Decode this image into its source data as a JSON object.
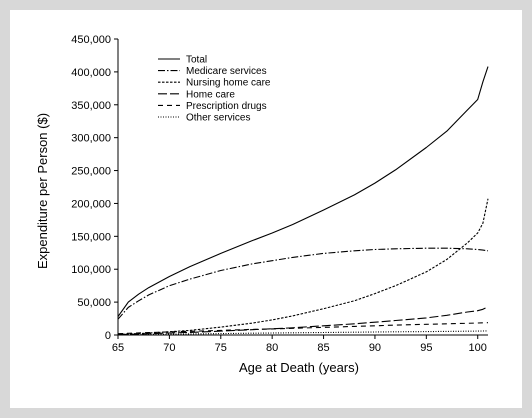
{
  "chart_data": {
    "type": "line",
    "title": "",
    "xlabel": "Age at Death (years)",
    "ylabel": "Expenditure per Person  ($)",
    "xlim": [
      65,
      101
    ],
    "ylim": [
      0,
      450000
    ],
    "x_ticks": [
      65,
      70,
      75,
      80,
      85,
      90,
      95,
      100
    ],
    "y_ticks": [
      0,
      50000,
      100000,
      150000,
      200000,
      250000,
      300000,
      350000,
      400000,
      450000
    ],
    "x_tick_labels": [
      "65",
      "70",
      "75",
      "80",
      "85",
      "90",
      "95",
      "100"
    ],
    "y_tick_labels": [
      "0",
      "50,000",
      "100,000",
      "150,000",
      "200,000",
      "250,000",
      "300,000",
      "350,000",
      "400,000",
      "450,000"
    ],
    "grid": false,
    "legend_position": "top-left",
    "x": [
      65,
      66,
      67,
      68,
      70,
      72,
      75,
      78,
      80,
      82,
      85,
      88,
      90,
      92,
      95,
      97,
      99,
      100,
      100.5,
      101
    ],
    "series": [
      {
        "name": "Total",
        "style": "solid",
        "values": [
          28000,
          50000,
          62000,
          72000,
          89000,
          104000,
          124000,
          143000,
          155000,
          168000,
          190000,
          213000,
          231000,
          251000,
          285000,
          310000,
          342000,
          358000,
          385000,
          408000
        ]
      },
      {
        "name": "Medicare services",
        "style": "dash-dot",
        "values": [
          24000,
          42000,
          52000,
          61000,
          75000,
          85000,
          98000,
          108000,
          113000,
          118000,
          124000,
          128000,
          130000,
          131000,
          132000,
          132000,
          131000,
          130000,
          129000,
          128000
        ]
      },
      {
        "name": "Nursing home care",
        "style": "short-dash",
        "values": [
          1000,
          1600,
          2200,
          3000,
          5000,
          7000,
          12000,
          18000,
          23000,
          29000,
          40000,
          52000,
          63000,
          75000,
          96000,
          115000,
          140000,
          155000,
          170000,
          207000
        ]
      },
      {
        "name": "Home care",
        "style": "long-dash",
        "values": [
          500,
          1000,
          1500,
          2000,
          3000,
          4000,
          6000,
          8000,
          9500,
          11000,
          14000,
          17000,
          19500,
          22000,
          26000,
          30000,
          35000,
          37000,
          39000,
          43000
        ]
      },
      {
        "name": "Prescription drugs",
        "style": "medium-dash",
        "values": [
          2000,
          2600,
          3200,
          3700,
          4700,
          5700,
          7000,
          8500,
          9300,
          10200,
          11500,
          13000,
          14000,
          15000,
          16200,
          17000,
          17800,
          18200,
          18500,
          18700
        ]
      },
      {
        "name": "Other services",
        "style": "dotted",
        "values": [
          300,
          500,
          700,
          900,
          1300,
          1700,
          2200,
          2700,
          3000,
          3300,
          3800,
          4200,
          4500,
          4800,
          5200,
          5500,
          5800,
          6000,
          6100,
          6200
        ]
      }
    ]
  }
}
